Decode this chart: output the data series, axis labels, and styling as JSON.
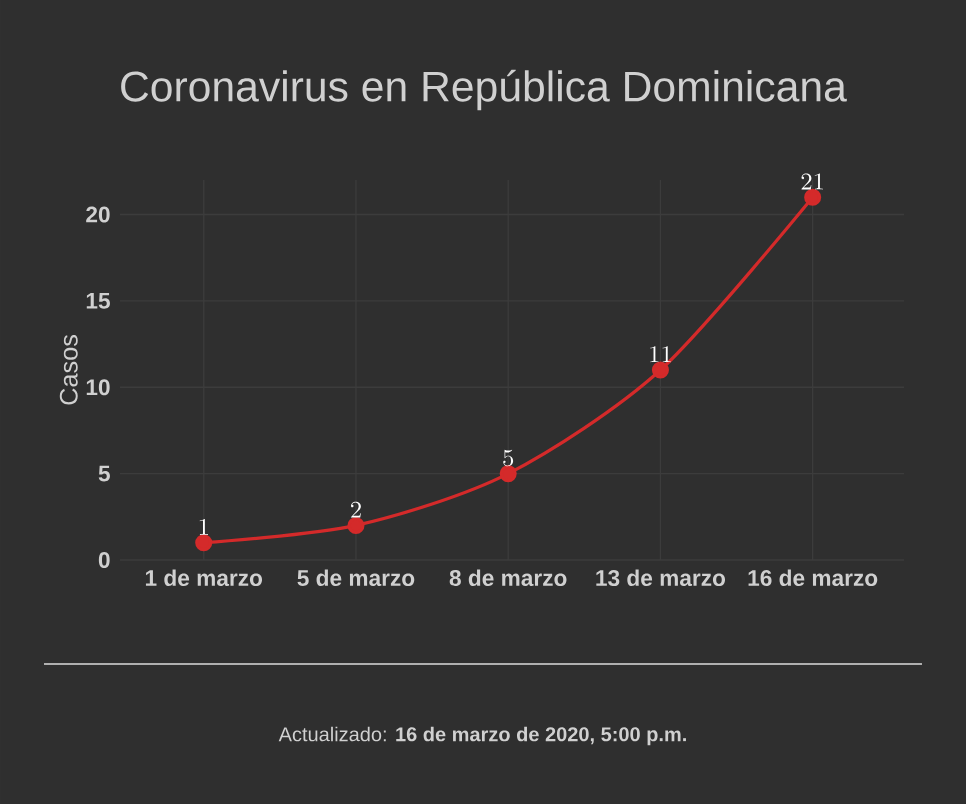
{
  "chart_data": {
    "type": "line",
    "title": "Coronavirus en República Dominicana",
    "ylabel": "Casos",
    "categories": [
      "1 de marzo",
      "5 de marzo",
      "8 de marzo",
      "13 de marzo",
      "16 de marzo"
    ],
    "series": [
      {
        "color": "#d42a2a",
        "values": [
          1,
          2,
          5,
          11,
          21
        ]
      }
    ],
    "ylim": [
      0,
      22
    ],
    "yticks": [
      0,
      5,
      10,
      15,
      20
    ],
    "grid": true,
    "marker": "circle",
    "line_style": "solid",
    "data_labels": true,
    "annotations": [
      "Actualizado: **16 de marzo de 2020, 5:00 p.m.**"
    ]
  }
}
